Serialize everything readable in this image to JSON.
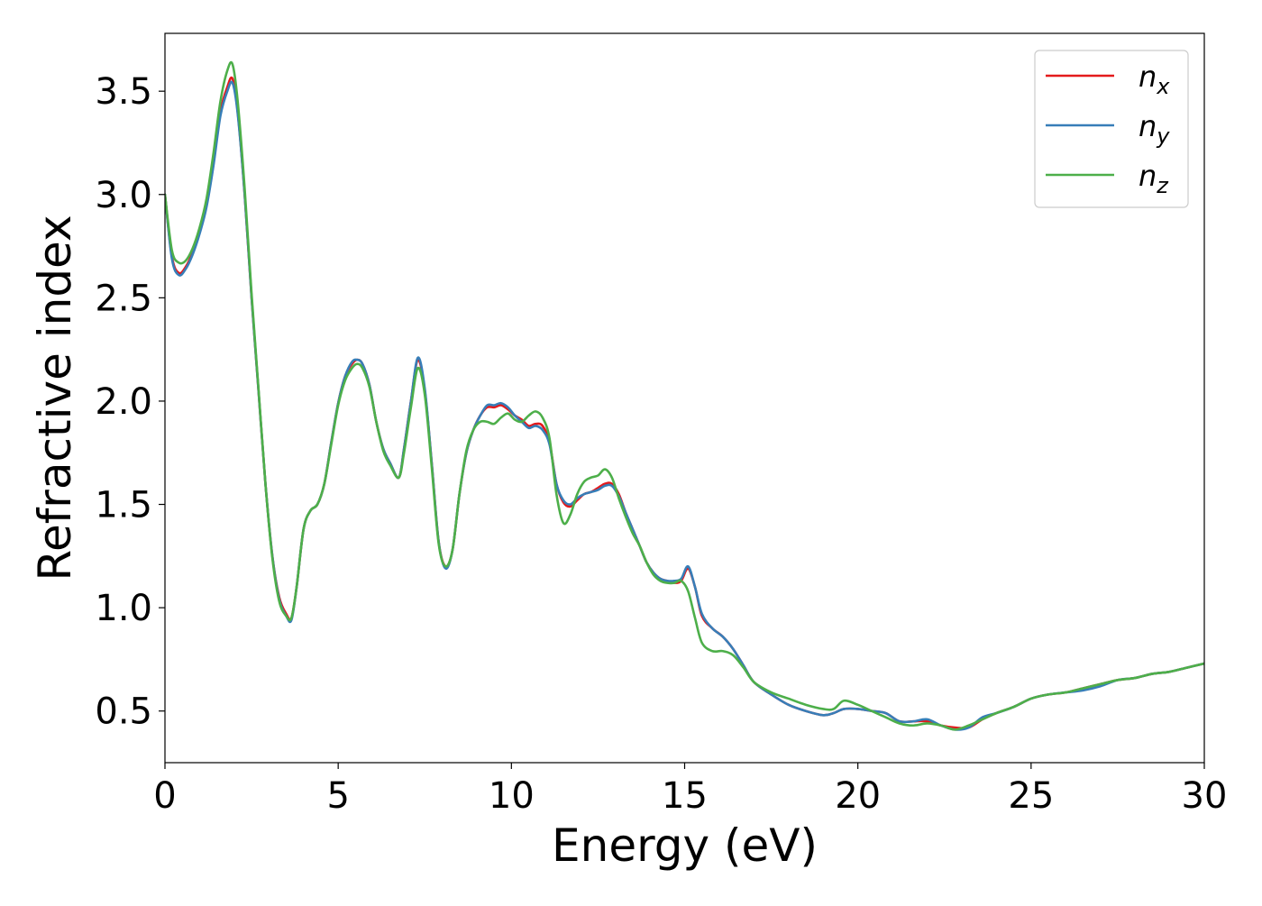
{
  "chart_data": {
    "type": "line",
    "title": "",
    "xlabel": "Energy (eV)",
    "ylabel": "Refractive index",
    "xlim": [
      0,
      30
    ],
    "ylim": [
      0.25,
      3.78
    ],
    "x_ticks": [
      0,
      5,
      10,
      15,
      20,
      25,
      30
    ],
    "x_tick_labels": [
      "0",
      "5",
      "10",
      "15",
      "20",
      "25",
      "30"
    ],
    "y_ticks": [
      0.5,
      1.0,
      1.5,
      2.0,
      2.5,
      3.0,
      3.5
    ],
    "y_tick_labels": [
      "0.5",
      "1.0",
      "1.5",
      "2.0",
      "2.5",
      "3.0",
      "3.5"
    ],
    "grid": false,
    "legend_position": "top-right",
    "series": [
      {
        "name": "n",
        "subscript": "x",
        "color": "#e41a1c",
        "x": [
          0,
          0.2,
          0.4,
          0.6,
          0.8,
          1.0,
          1.2,
          1.4,
          1.6,
          1.8,
          1.95,
          2.1,
          2.3,
          2.5,
          2.7,
          2.9,
          3.1,
          3.3,
          3.5,
          3.65,
          3.8,
          4.0,
          4.2,
          4.4,
          4.6,
          4.8,
          5.0,
          5.2,
          5.4,
          5.55,
          5.7,
          5.9,
          6.1,
          6.3,
          6.5,
          6.75,
          6.9,
          7.1,
          7.3,
          7.5,
          7.7,
          7.9,
          8.1,
          8.3,
          8.5,
          8.7,
          8.9,
          9.1,
          9.3,
          9.5,
          9.7,
          9.9,
          10.1,
          10.3,
          10.5,
          10.7,
          10.9,
          11.1,
          11.3,
          11.5,
          11.7,
          11.9,
          12.1,
          12.3,
          12.5,
          12.7,
          12.9,
          13.1,
          13.3,
          13.5,
          13.7,
          13.9,
          14.1,
          14.3,
          14.5,
          14.7,
          14.9,
          15.1,
          15.3,
          15.5,
          15.8,
          16.1,
          16.4,
          16.7,
          17.0,
          17.5,
          18.0,
          18.5,
          19.0,
          19.3,
          19.6,
          20.0,
          20.4,
          20.8,
          21.2,
          21.6,
          22.0,
          22.4,
          22.8,
          23.2,
          23.6,
          24.0,
          24.5,
          25.0,
          25.5,
          26.0,
          26.5,
          27.0,
          27.5,
          28.0,
          28.5,
          29.0,
          29.5,
          30.0
        ],
        "y": [
          3.0,
          2.7,
          2.62,
          2.65,
          2.72,
          2.82,
          2.95,
          3.15,
          3.4,
          3.52,
          3.56,
          3.4,
          3.0,
          2.5,
          2.05,
          1.6,
          1.25,
          1.05,
          0.97,
          0.95,
          1.1,
          1.38,
          1.47,
          1.5,
          1.6,
          1.8,
          1.99,
          2.12,
          2.18,
          2.2,
          2.18,
          2.08,
          1.9,
          1.77,
          1.7,
          1.63,
          1.77,
          2.0,
          2.2,
          2.05,
          1.7,
          1.32,
          1.2,
          1.28,
          1.55,
          1.75,
          1.86,
          1.93,
          1.97,
          1.97,
          1.98,
          1.96,
          1.93,
          1.91,
          1.88,
          1.89,
          1.88,
          1.8,
          1.6,
          1.51,
          1.49,
          1.52,
          1.55,
          1.56,
          1.58,
          1.6,
          1.6,
          1.55,
          1.46,
          1.38,
          1.3,
          1.22,
          1.17,
          1.14,
          1.13,
          1.12,
          1.13,
          1.19,
          1.1,
          0.96,
          0.9,
          0.86,
          0.8,
          0.72,
          0.64,
          0.58,
          0.53,
          0.5,
          0.48,
          0.49,
          0.51,
          0.51,
          0.5,
          0.49,
          0.45,
          0.45,
          0.45,
          0.43,
          0.42,
          0.42,
          0.46,
          0.49,
          0.52,
          0.56,
          0.58,
          0.59,
          0.61,
          0.63,
          0.65,
          0.66,
          0.68,
          0.69,
          0.71,
          0.73
        ]
      },
      {
        "name": "n",
        "subscript": "y",
        "color": "#377eb8",
        "x": [
          0,
          0.2,
          0.4,
          0.6,
          0.8,
          1.0,
          1.2,
          1.4,
          1.6,
          1.8,
          1.95,
          2.1,
          2.3,
          2.5,
          2.7,
          2.9,
          3.1,
          3.3,
          3.5,
          3.65,
          3.8,
          4.0,
          4.2,
          4.4,
          4.6,
          4.8,
          5.0,
          5.2,
          5.4,
          5.55,
          5.7,
          5.9,
          6.1,
          6.3,
          6.5,
          6.75,
          6.9,
          7.1,
          7.3,
          7.5,
          7.7,
          7.9,
          8.1,
          8.3,
          8.5,
          8.7,
          8.9,
          9.1,
          9.3,
          9.5,
          9.7,
          9.9,
          10.1,
          10.3,
          10.5,
          10.7,
          10.9,
          11.1,
          11.3,
          11.5,
          11.7,
          11.9,
          12.1,
          12.3,
          12.5,
          12.7,
          12.9,
          13.1,
          13.3,
          13.5,
          13.7,
          13.9,
          14.1,
          14.3,
          14.5,
          14.7,
          14.9,
          15.1,
          15.3,
          15.5,
          15.8,
          16.1,
          16.4,
          16.7,
          17.0,
          17.5,
          18.0,
          18.5,
          19.0,
          19.3,
          19.6,
          20.0,
          20.4,
          20.8,
          21.2,
          21.6,
          22.0,
          22.4,
          22.8,
          23.2,
          23.6,
          24.0,
          24.5,
          25.0,
          25.5,
          26.0,
          26.5,
          27.0,
          27.5,
          28.0,
          28.5,
          29.0,
          29.5,
          30.0
        ],
        "y": [
          3.0,
          2.69,
          2.61,
          2.64,
          2.71,
          2.81,
          2.94,
          3.14,
          3.38,
          3.5,
          3.54,
          3.39,
          3.0,
          2.5,
          2.05,
          1.6,
          1.25,
          1.04,
          0.96,
          0.94,
          1.1,
          1.38,
          1.47,
          1.5,
          1.6,
          1.8,
          1.99,
          2.12,
          2.19,
          2.2,
          2.18,
          2.08,
          1.9,
          1.77,
          1.7,
          1.63,
          1.77,
          2.0,
          2.21,
          2.06,
          1.7,
          1.32,
          1.19,
          1.28,
          1.55,
          1.75,
          1.86,
          1.93,
          1.98,
          1.98,
          1.99,
          1.97,
          1.93,
          1.9,
          1.87,
          1.88,
          1.86,
          1.79,
          1.6,
          1.52,
          1.5,
          1.53,
          1.55,
          1.56,
          1.57,
          1.59,
          1.59,
          1.54,
          1.46,
          1.38,
          1.3,
          1.22,
          1.17,
          1.14,
          1.13,
          1.13,
          1.14,
          1.2,
          1.1,
          0.97,
          0.9,
          0.86,
          0.8,
          0.72,
          0.64,
          0.58,
          0.53,
          0.5,
          0.48,
          0.49,
          0.51,
          0.51,
          0.5,
          0.49,
          0.45,
          0.45,
          0.46,
          0.43,
          0.41,
          0.42,
          0.47,
          0.49,
          0.52,
          0.56,
          0.58,
          0.59,
          0.6,
          0.62,
          0.65,
          0.66,
          0.68,
          0.69,
          0.71,
          0.73
        ]
      },
      {
        "name": "n",
        "subscript": "z",
        "color": "#4daf4a",
        "x": [
          0,
          0.2,
          0.4,
          0.6,
          0.8,
          1.0,
          1.2,
          1.4,
          1.6,
          1.8,
          1.95,
          2.1,
          2.3,
          2.5,
          2.7,
          2.9,
          3.1,
          3.3,
          3.5,
          3.65,
          3.8,
          4.0,
          4.2,
          4.4,
          4.6,
          4.8,
          5.0,
          5.2,
          5.4,
          5.55,
          5.7,
          5.9,
          6.1,
          6.3,
          6.5,
          6.75,
          6.9,
          7.1,
          7.3,
          7.5,
          7.7,
          7.9,
          8.1,
          8.3,
          8.5,
          8.7,
          8.9,
          9.1,
          9.3,
          9.5,
          9.7,
          9.9,
          10.1,
          10.3,
          10.5,
          10.7,
          10.9,
          11.1,
          11.3,
          11.5,
          11.7,
          11.9,
          12.1,
          12.3,
          12.5,
          12.7,
          12.9,
          13.1,
          13.3,
          13.5,
          13.7,
          13.9,
          14.1,
          14.3,
          14.5,
          14.7,
          14.9,
          15.1,
          15.3,
          15.5,
          15.8,
          16.1,
          16.4,
          16.7,
          17.0,
          17.5,
          18.0,
          18.5,
          19.0,
          19.3,
          19.6,
          20.0,
          20.4,
          20.8,
          21.2,
          21.6,
          22.0,
          22.4,
          22.8,
          23.2,
          23.6,
          24.0,
          24.5,
          25.0,
          25.5,
          26.0,
          26.5,
          27.0,
          27.5,
          28.0,
          28.5,
          29.0,
          29.5,
          30.0
        ],
        "y": [
          3.0,
          2.73,
          2.67,
          2.68,
          2.74,
          2.84,
          2.98,
          3.2,
          3.45,
          3.6,
          3.63,
          3.45,
          3.03,
          2.52,
          2.06,
          1.6,
          1.24,
          1.03,
          0.96,
          0.95,
          1.1,
          1.38,
          1.47,
          1.5,
          1.6,
          1.79,
          1.98,
          2.1,
          2.16,
          2.18,
          2.16,
          2.07,
          1.9,
          1.76,
          1.69,
          1.63,
          1.75,
          1.97,
          2.16,
          2.03,
          1.68,
          1.31,
          1.2,
          1.28,
          1.55,
          1.76,
          1.86,
          1.9,
          1.9,
          1.89,
          1.92,
          1.94,
          1.91,
          1.9,
          1.93,
          1.95,
          1.92,
          1.82,
          1.55,
          1.41,
          1.45,
          1.55,
          1.61,
          1.63,
          1.64,
          1.67,
          1.63,
          1.53,
          1.44,
          1.36,
          1.3,
          1.22,
          1.16,
          1.13,
          1.12,
          1.12,
          1.13,
          1.08,
          0.95,
          0.83,
          0.79,
          0.79,
          0.77,
          0.71,
          0.64,
          0.59,
          0.56,
          0.53,
          0.51,
          0.51,
          0.55,
          0.53,
          0.5,
          0.47,
          0.44,
          0.43,
          0.44,
          0.43,
          0.41,
          0.43,
          0.46,
          0.49,
          0.52,
          0.56,
          0.58,
          0.59,
          0.61,
          0.63,
          0.65,
          0.66,
          0.68,
          0.69,
          0.71,
          0.73
        ]
      }
    ]
  }
}
